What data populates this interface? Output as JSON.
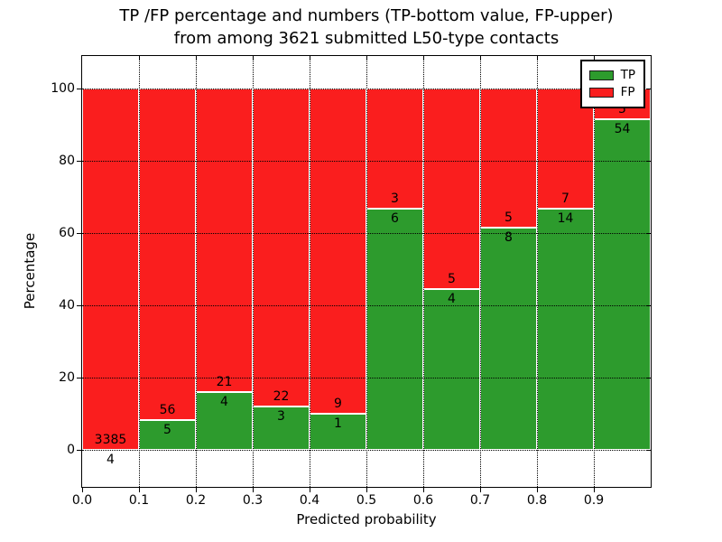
{
  "title": {
    "line1": "TP /FP percentage and numbers (TP-bottom value, FP-upper)",
    "line2": "from among 3621 submitted L50-type contacts"
  },
  "chart_data": {
    "type": "bar",
    "stacked": true,
    "normalized": "each bar scaled to 100%",
    "title": "TP /FP percentage and numbers (TP-bottom value, FP-upper) from among 3621 submitted L50-type contacts",
    "xlabel": "Predicted probability",
    "ylabel": "Percentage",
    "xlim": [
      0.0,
      1.0
    ],
    "ylim": [
      -10.3,
      109.3
    ],
    "x_tick_labels": [
      "0.0",
      "0.1",
      "0.2",
      "0.3",
      "0.4",
      "0.5",
      "0.6",
      "0.7",
      "0.8",
      "0.9"
    ],
    "y_ticks": [
      0,
      20,
      40,
      60,
      80,
      100
    ],
    "grid": true,
    "total_contacts": 3621,
    "bins": [
      {
        "range": "0.0-0.1",
        "tp": 4,
        "fp": 3385,
        "tp_percent": 0.12
      },
      {
        "range": "0.1-0.2",
        "tp": 5,
        "fp": 56,
        "tp_percent": 8.2
      },
      {
        "range": "0.2-0.3",
        "tp": 4,
        "fp": 21,
        "tp_percent": 16.0
      },
      {
        "range": "0.3-0.4",
        "tp": 3,
        "fp": 22,
        "tp_percent": 12.0
      },
      {
        "range": "0.4-0.5",
        "tp": 1,
        "fp": 9,
        "tp_percent": 10.0
      },
      {
        "range": "0.5-0.6",
        "tp": 6,
        "fp": 3,
        "tp_percent": 66.67
      },
      {
        "range": "0.6-0.7",
        "tp": 4,
        "fp": 5,
        "tp_percent": 44.44
      },
      {
        "range": "0.7-0.8",
        "tp": 8,
        "fp": 5,
        "tp_percent": 61.54
      },
      {
        "range": "0.8-0.9",
        "tp": 14,
        "fp": 7,
        "tp_percent": 66.67
      },
      {
        "range": "0.9-1.0",
        "tp": 54,
        "fp": 5,
        "tp_percent": 91.53
      }
    ],
    "series": [
      {
        "name": "TP",
        "color": "#2d9b2d",
        "values": [
          4,
          5,
          4,
          3,
          1,
          6,
          4,
          8,
          14,
          54
        ]
      },
      {
        "name": "FP",
        "color": "#fa1e1e",
        "values": [
          3385,
          56,
          21,
          22,
          9,
          3,
          5,
          5,
          7,
          5
        ]
      }
    ],
    "legend": {
      "position": "upper right",
      "entries": [
        "TP",
        "FP"
      ]
    }
  }
}
